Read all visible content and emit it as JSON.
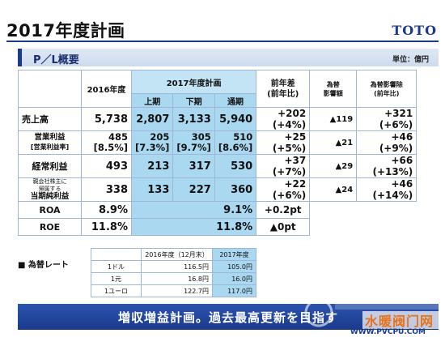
{
  "header": {
    "title": "2017年度計画",
    "brand": "TOTO"
  },
  "section": {
    "title": "P／L概要",
    "unit": "単位：億円"
  },
  "table": {
    "headers": {
      "y2016": "2016年度",
      "y2017": "2017年度計画",
      "h1": "上期",
      "h2": "下期",
      "full": "通期",
      "yoy_line1": "前年差",
      "yoy_line2": "(前年比)",
      "fx_line1": "為替",
      "fx_line2": "影響額",
      "exfx_line1": "為替影響除",
      "exfx_line2": "(前年比)"
    },
    "rows": {
      "sales": {
        "label": "売上高",
        "y2016": "5,738",
        "h1": "2,807",
        "h2": "3,133",
        "full": "5,940",
        "yoy_amount": "+202",
        "yoy_pct": "(+4%)",
        "fx": "▲119",
        "exfx_amount": "+321",
        "exfx_pct": "(+6%)"
      },
      "op": {
        "label": "営業利益",
        "sublabel": "[営業利益率]",
        "y2016": "485",
        "y2016_rate": "[8.5%]",
        "h1": "205",
        "h1_rate": "[7.3%]",
        "h2": "305",
        "h2_rate": "[9.7%]",
        "full": "510",
        "full_rate": "[8.6%]",
        "yoy_amount": "+25",
        "yoy_pct": "(+5%)",
        "fx": "▲21",
        "exfx_amount": "+46",
        "exfx_pct": "(+9%)"
      },
      "ordinary": {
        "label": "経常利益",
        "y2016": "493",
        "h1": "213",
        "h2": "317",
        "full": "530",
        "yoy_amount": "+37",
        "yoy_pct": "(+7%)",
        "fx": "▲29",
        "exfx_amount": "+66",
        "exfx_pct": "(+13%)"
      },
      "net": {
        "label_line1": "親会社株主に",
        "label_line2": "帰属する",
        "label_line3": "当期純利益",
        "y2016": "338",
        "h1": "133",
        "h2": "227",
        "full": "360",
        "yoy_amount": "+22",
        "yoy_pct": "(+6%)",
        "fx": "▲24",
        "exfx_amount": "+46",
        "exfx_pct": "(+14%)"
      },
      "roa": {
        "label": "ROA",
        "y2016": "8.9%",
        "full": "9.1%",
        "yoy": "+0.2pt"
      },
      "roe": {
        "label": "ROE",
        "y2016": "11.8%",
        "full": "11.8%",
        "yoy": "▲0pt"
      }
    }
  },
  "fx_rates": {
    "title": "■ 為替レート",
    "head_2016": "2016年度（12月末）",
    "head_2017": "2017年度",
    "rows": [
      {
        "currency": "1ドル",
        "y2016": "116.5円",
        "y2017": "105.0円"
      },
      {
        "currency": "1元",
        "y2016": "16.8円",
        "y2017": "16.0円"
      },
      {
        "currency": "1ユーロ",
        "y2016": "122.7円",
        "y2017": "117.0円"
      }
    ]
  },
  "banner": {
    "text": "増収増益計画。過去最高更新を目指す"
  },
  "watermark": {
    "site_cn": "水暖阀门网",
    "url": "WWW.PVCPU.COM"
  },
  "colors": {
    "brand_blue": "#1a3a8c",
    "plan_fill": "#a9d8f0",
    "grid": "#9fb6d6"
  }
}
